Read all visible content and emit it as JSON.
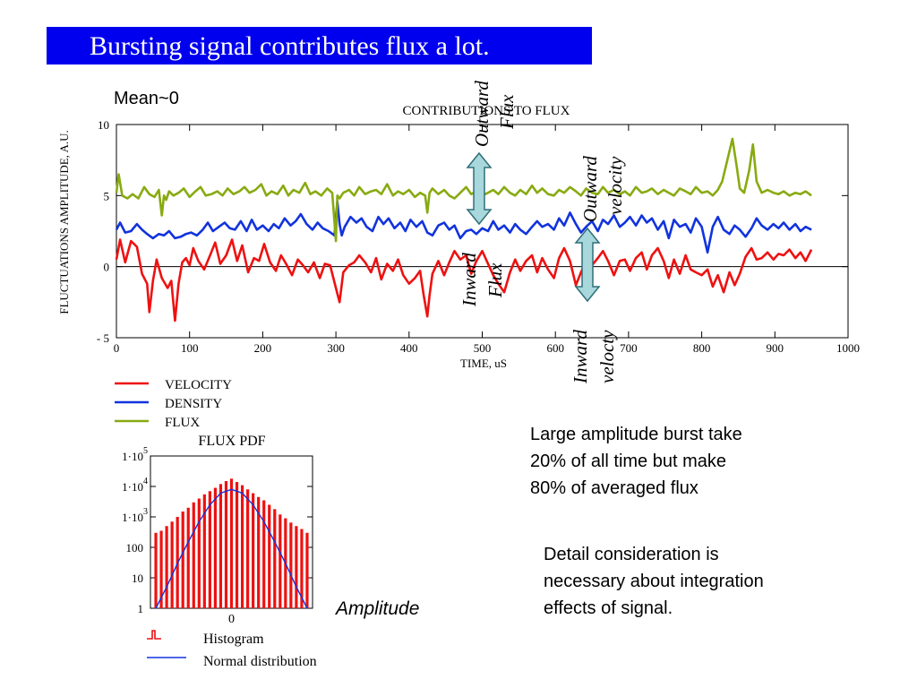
{
  "slide": {
    "title": "Bursting signal contributes flux a lot.",
    "mean_label": "Mean~0",
    "note_burst": [
      "Large amplitude burst take",
      "20% of all time but make",
      "80% of averaged flux"
    ],
    "note_detail": [
      "Detail consideration is",
      "necessary about integration",
      "effects of signal."
    ],
    "amplitude_label": "Amplitude",
    "colors": {
      "title_bg": "#0000ee",
      "velocity": "#ee1111",
      "density": "#1133dd",
      "flux": "#88aa11",
      "arrow_fill": "#a8d8dc",
      "arrow_stroke": "#2f6f78"
    },
    "annotations": {
      "outward_flux": [
        "Outward",
        "Flux"
      ],
      "inward_flux": [
        "Inward",
        "Flux"
      ],
      "outward_velocity": [
        "Outward",
        "velocity"
      ],
      "inward_velocity": [
        "Inward",
        "velocty"
      ]
    }
  },
  "chart_data": [
    {
      "type": "line",
      "title": "CONTRIBUTIONS TO FLUX",
      "xlabel": "TIME, uS",
      "ylabel": "FLUCTUATIONS AMPLITUDE, A.U.",
      "xlim": [
        0,
        1000
      ],
      "ylim": [
        -5,
        10
      ],
      "x_ticks": [
        0,
        100,
        200,
        300,
        400,
        500,
        600,
        700,
        800,
        900,
        1000
      ],
      "y_ticks": [
        -5,
        0,
        5,
        10
      ],
      "x_tick_labels": [
        "0",
        "100",
        "200",
        "300",
        "400",
        "500",
        "600",
        "700",
        "800",
        "900",
        "1000"
      ],
      "y_tick_labels": [
        "- 5",
        "0",
        "5",
        "10"
      ],
      "legend_position": "bottom-left, below the chart",
      "series": [
        {
          "name": "VELOCITY",
          "color": "#ee1111",
          "x": [
            0,
            5,
            12,
            20,
            28,
            35,
            42,
            45,
            50,
            55,
            62,
            70,
            75,
            80,
            85,
            90,
            95,
            100,
            105,
            112,
            120,
            128,
            135,
            142,
            150,
            158,
            165,
            172,
            180,
            188,
            195,
            202,
            210,
            218,
            225,
            232,
            240,
            248,
            255,
            262,
            270,
            278,
            285,
            292,
            300,
            305,
            310,
            318,
            325,
            332,
            340,
            348,
            355,
            362,
            370,
            378,
            385,
            392,
            400,
            408,
            415,
            420,
            425,
            428,
            432,
            440,
            448,
            455,
            462,
            470,
            478,
            485,
            492,
            500,
            508,
            515,
            522,
            530,
            538,
            545,
            552,
            560,
            568,
            575,
            582,
            590,
            598,
            605,
            612,
            620,
            628,
            635,
            642,
            650,
            658,
            665,
            672,
            680,
            688,
            695,
            702,
            710,
            718,
            725,
            732,
            740,
            748,
            755,
            762,
            770,
            778,
            785,
            792,
            800,
            808,
            815,
            822,
            830,
            838,
            845,
            852,
            860,
            868,
            875,
            882,
            890,
            898,
            905,
            912,
            920,
            928,
            935,
            942,
            950
          ],
          "y": [
            0.5,
            1.9,
            0.3,
            1.8,
            1.4,
            -0.5,
            -1.2,
            -3.2,
            -1.0,
            0.5,
            -0.8,
            -1.5,
            -1.0,
            -3.8,
            -1.2,
            0.3,
            0.6,
            0.1,
            1.3,
            0.4,
            -0.2,
            0.8,
            1.7,
            0.2,
            0.8,
            1.9,
            0.4,
            1.5,
            -0.4,
            0.6,
            0.4,
            1.6,
            0.3,
            -0.3,
            0.8,
            0.2,
            -0.6,
            0.5,
            0.1,
            -0.4,
            0.3,
            -0.8,
            0.2,
            0.1,
            -1.5,
            -2.5,
            -0.4,
            0.1,
            0.3,
            0.8,
            0.3,
            -0.4,
            0.6,
            -0.9,
            0.2,
            -0.3,
            0.5,
            -0.6,
            -1.2,
            -0.8,
            -0.3,
            -2.0,
            -3.5,
            -2.0,
            -0.5,
            0.4,
            -0.6,
            0.3,
            1.1,
            0.5,
            0.8,
            -0.5,
            0.4,
            1.1,
            0.2,
            -0.6,
            -1.2,
            -1.8,
            -0.4,
            0.5,
            -0.3,
            0.4,
            0.8,
            -0.4,
            0.6,
            -0.2,
            -0.8,
            0.6,
            1.3,
            0.4,
            -1.3,
            -0.4,
            0.4,
            0.1,
            0.6,
            1.1,
            0.4,
            -0.6,
            0.4,
            0.5,
            -0.3,
            0.6,
            1.0,
            -0.2,
            0.8,
            1.3,
            0.4,
            -0.8,
            0.5,
            -0.5,
            0.8,
            -0.2,
            -0.4,
            -0.6,
            -0.2,
            -1.4,
            -0.6,
            -1.8,
            -0.4,
            -1.3,
            -0.5,
            0.7,
            1.3,
            0.5,
            0.6,
            1.0,
            0.5,
            0.9,
            0.8,
            1.2,
            0.6,
            1.0,
            0.4,
            1.2
          ]
        },
        {
          "name": "DENSITY",
          "color": "#1133dd",
          "x": [
            0,
            5,
            12,
            20,
            28,
            35,
            42,
            50,
            58,
            65,
            72,
            80,
            88,
            95,
            102,
            110,
            118,
            125,
            132,
            140,
            148,
            155,
            162,
            170,
            178,
            185,
            192,
            200,
            208,
            215,
            222,
            230,
            238,
            245,
            252,
            260,
            268,
            275,
            282,
            290,
            298,
            302,
            305,
            308,
            312,
            320,
            328,
            335,
            342,
            350,
            358,
            365,
            372,
            380,
            388,
            395,
            402,
            410,
            418,
            425,
            432,
            440,
            448,
            455,
            462,
            470,
            478,
            485,
            492,
            500,
            508,
            515,
            522,
            530,
            538,
            545,
            552,
            560,
            568,
            575,
            582,
            590,
            598,
            605,
            612,
            620,
            628,
            635,
            642,
            650,
            658,
            665,
            672,
            680,
            688,
            695,
            702,
            710,
            718,
            725,
            732,
            740,
            748,
            755,
            762,
            770,
            778,
            785,
            792,
            800,
            808,
            815,
            822,
            830,
            838,
            845,
            852,
            860,
            868,
            875,
            882,
            890,
            898,
            905,
            912,
            920,
            928,
            935,
            942,
            950
          ],
          "y": [
            2.6,
            3.1,
            2.4,
            2.5,
            3.0,
            2.6,
            2.3,
            2.0,
            2.3,
            2.2,
            2.5,
            2.0,
            2.1,
            2.3,
            2.4,
            2.2,
            2.6,
            3.1,
            2.5,
            2.8,
            3.1,
            2.7,
            2.6,
            3.2,
            2.5,
            3.3,
            2.6,
            2.9,
            2.5,
            3.0,
            2.7,
            3.4,
            2.9,
            3.2,
            3.7,
            3.0,
            2.6,
            3.1,
            2.7,
            2.5,
            2.2,
            4.6,
            3.0,
            2.2,
            2.8,
            3.5,
            3.1,
            3.4,
            2.8,
            2.5,
            3.5,
            3.0,
            3.4,
            2.7,
            3.1,
            2.5,
            3.3,
            2.8,
            3.2,
            2.4,
            2.2,
            2.9,
            3.1,
            2.6,
            2.9,
            2.0,
            2.5,
            2.6,
            2.3,
            2.7,
            2.5,
            3.2,
            2.6,
            2.9,
            2.4,
            3.0,
            2.6,
            2.3,
            2.8,
            3.2,
            2.8,
            3.0,
            2.6,
            3.4,
            2.9,
            3.8,
            3.0,
            2.4,
            2.8,
            3.2,
            2.5,
            3.3,
            3.0,
            3.6,
            2.8,
            3.1,
            3.5,
            2.9,
            3.6,
            3.1,
            3.4,
            2.6,
            3.2,
            2.0,
            3.3,
            2.8,
            3.0,
            2.4,
            3.4,
            2.8,
            1.0,
            2.8,
            3.5,
            2.6,
            2.3,
            2.9,
            2.6,
            2.1,
            2.7,
            3.4,
            2.9,
            2.6,
            3.0,
            2.7,
            3.1,
            2.6,
            3.0,
            2.5,
            2.8,
            2.6
          ]
        },
        {
          "name": "FLUX",
          "color": "#88aa11",
          "x": [
            0,
            3,
            8,
            15,
            22,
            30,
            38,
            45,
            52,
            58,
            62,
            65,
            68,
            72,
            78,
            85,
            92,
            100,
            108,
            115,
            122,
            130,
            138,
            145,
            152,
            160,
            168,
            175,
            182,
            190,
            198,
            205,
            212,
            220,
            228,
            235,
            242,
            250,
            258,
            265,
            272,
            280,
            288,
            295,
            300,
            302,
            305,
            310,
            318,
            325,
            332,
            340,
            348,
            355,
            362,
            370,
            378,
            385,
            392,
            400,
            408,
            415,
            422,
            425,
            428,
            432,
            440,
            448,
            455,
            462,
            470,
            478,
            485,
            492,
            500,
            508,
            515,
            522,
            530,
            538,
            545,
            552,
            560,
            568,
            575,
            582,
            590,
            598,
            605,
            612,
            620,
            628,
            635,
            642,
            650,
            658,
            665,
            672,
            680,
            688,
            695,
            702,
            710,
            718,
            725,
            732,
            740,
            748,
            755,
            762,
            770,
            778,
            785,
            792,
            800,
            808,
            815,
            822,
            828,
            835,
            842,
            848,
            852,
            858,
            865,
            870,
            875,
            882,
            890,
            898,
            905,
            912,
            920,
            928,
            935,
            942,
            950
          ],
          "y": [
            5.2,
            6.5,
            5.0,
            4.8,
            5.1,
            4.8,
            5.6,
            5.1,
            4.9,
            5.4,
            3.6,
            5.0,
            4.7,
            5.3,
            5.0,
            5.2,
            5.5,
            4.9,
            5.3,
            5.6,
            5.0,
            5.1,
            5.3,
            5.0,
            5.5,
            5.1,
            5.3,
            5.6,
            5.2,
            5.4,
            5.8,
            5.0,
            5.3,
            5.1,
            5.7,
            5.0,
            5.4,
            5.2,
            5.9,
            5.1,
            5.3,
            5.0,
            5.5,
            5.2,
            1.8,
            5.0,
            4.8,
            5.2,
            5.4,
            5.0,
            5.6,
            5.1,
            5.3,
            5.4,
            5.1,
            5.8,
            5.0,
            5.3,
            5.1,
            5.4,
            4.9,
            5.2,
            5.0,
            3.8,
            5.2,
            5.5,
            5.1,
            5.4,
            5.0,
            4.8,
            5.2,
            5.6,
            5.1,
            5.3,
            5.0,
            5.2,
            5.4,
            5.1,
            5.6,
            5.2,
            5.0,
            5.4,
            5.1,
            5.7,
            5.2,
            5.5,
            5.1,
            5.0,
            5.4,
            5.2,
            5.6,
            5.3,
            5.0,
            5.5,
            5.2,
            5.1,
            5.6,
            5.2,
            5.4,
            5.1,
            5.3,
            5.0,
            5.6,
            5.2,
            5.3,
            5.5,
            5.1,
            5.4,
            5.2,
            5.0,
            5.5,
            5.3,
            5.1,
            5.6,
            5.2,
            5.3,
            5.0,
            5.4,
            6.0,
            7.5,
            9.0,
            7.0,
            5.5,
            5.2,
            6.8,
            8.6,
            6.0,
            5.2,
            5.4,
            5.2,
            5.1,
            5.3,
            5.0,
            5.2,
            5.1,
            5.3,
            5.0
          ]
        }
      ]
    },
    {
      "type": "bar",
      "title": "FLUX PDF",
      "xlabel": "",
      "ylabel": "",
      "y_scale": "log",
      "ylim": [
        1,
        100000
      ],
      "y_tick_labels": [
        "1",
        "10",
        "100",
        "1·10",
        "1·10",
        "1·10"
      ],
      "y_tick_exponents": [
        "",
        "",
        "",
        "3",
        "4",
        "5"
      ],
      "x_tick_labels": [
        "0"
      ],
      "legend_position": "bottom, below the plot",
      "series": [
        {
          "name": "Histogram",
          "color": "#ee1111",
          "type": "bar",
          "x": [
            -14,
            -13,
            -12,
            -11,
            -10,
            -9,
            -8,
            -7,
            -6,
            -5,
            -4,
            -3,
            -2,
            -1,
            0,
            1,
            2,
            3,
            4,
            5,
            6,
            7,
            8,
            9,
            10,
            11,
            12,
            13,
            14
          ],
          "values": [
            300,
            350,
            500,
            700,
            1000,
            1500,
            2000,
            3000,
            4000,
            5500,
            7000,
            9000,
            12000,
            15000,
            18000,
            14000,
            11000,
            8000,
            6000,
            4500,
            3500,
            2500,
            1800,
            1200,
            900,
            650,
            500,
            400,
            300
          ]
        },
        {
          "name": "Normal distribution",
          "color": "#1133dd",
          "type": "line",
          "x": [
            -14,
            -12,
            -10,
            -8,
            -6,
            -4,
            -2,
            0,
            2,
            4,
            6,
            8,
            10,
            12,
            14
          ],
          "values": [
            1,
            5,
            30,
            150,
            700,
            2500,
            6000,
            8000,
            6000,
            2500,
            700,
            150,
            30,
            5,
            1
          ]
        }
      ]
    }
  ]
}
